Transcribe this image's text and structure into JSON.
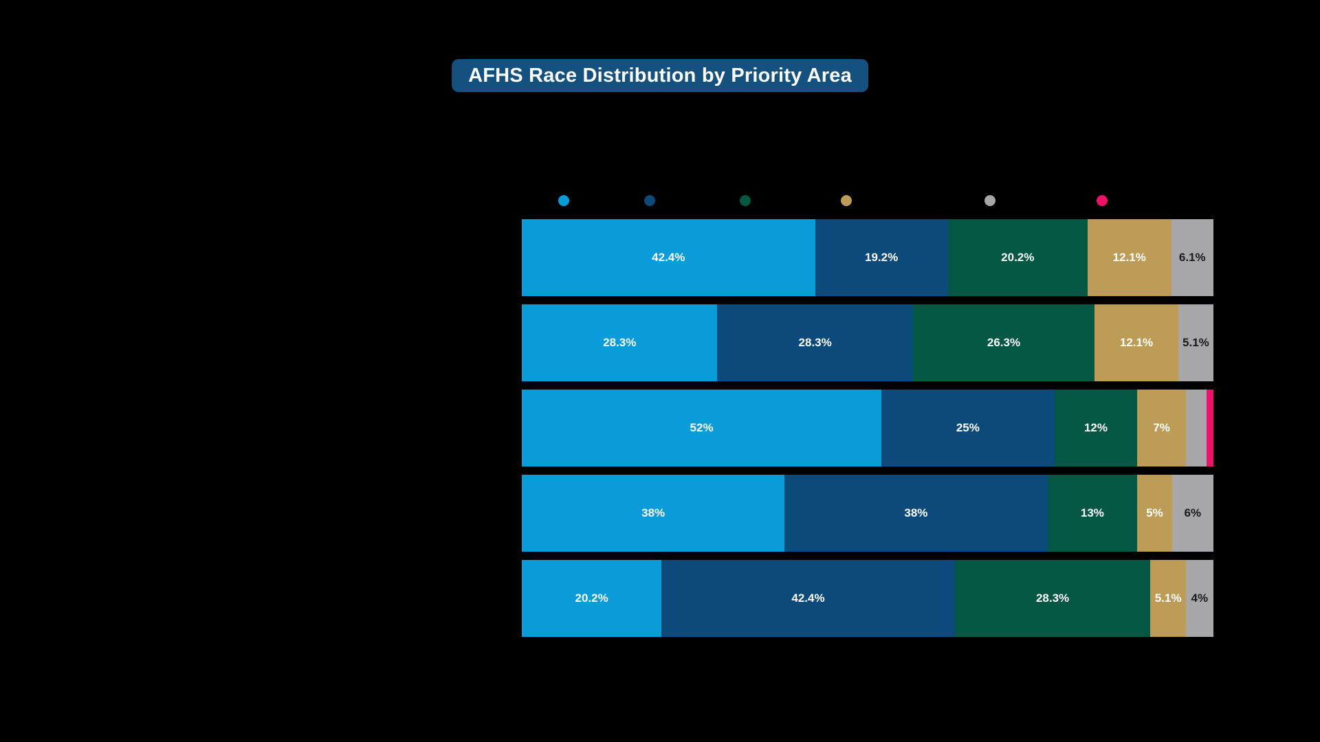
{
  "title": {
    "text": "AFHS Race Distribution by Priority Area"
  },
  "palette": {
    "light_blue": "#0A9CD8",
    "dark_blue": "#0D4A7C",
    "green": "#045742",
    "gold": "#BD9C58",
    "gray": "#A7A7A9",
    "pink": "#ED1168",
    "title_background": "#15517F",
    "page_background": "#000000",
    "label_light": "#FFFFFF",
    "label_dark": "#1A1A1A"
  },
  "legend": {
    "labels_visible": false,
    "dots": [
      {
        "name": "light-blue-dot",
        "color_key": "light_blue"
      },
      {
        "name": "dark-blue-dot",
        "color_key": "dark_blue"
      },
      {
        "name": "green-dot",
        "color_key": "green"
      },
      {
        "name": "gold-dot",
        "color_key": "gold"
      },
      {
        "name": "gray-dot",
        "color_key": "gray"
      },
      {
        "name": "pink-dot",
        "color_key": "pink"
      }
    ]
  },
  "chart_data": {
    "type": "bar",
    "orientation": "horizontal",
    "stacked": true,
    "unit": "percent",
    "title": "AFHS Race Distribution by Priority Area",
    "xlim": [
      0,
      100
    ],
    "grid": false,
    "legend_position": "top",
    "category_labels_visible": false,
    "categories": [
      "",
      "",
      "",
      "",
      ""
    ],
    "series": [
      {
        "name": "light-blue",
        "color_key": "light_blue",
        "values": [
          42.4,
          28.3,
          52,
          38,
          20.2
        ],
        "labels": [
          "42.4%",
          "28.3%",
          "52%",
          "38%",
          "20.2%"
        ]
      },
      {
        "name": "dark-blue",
        "color_key": "dark_blue",
        "values": [
          19.2,
          28.3,
          25,
          38,
          42.4
        ],
        "labels": [
          "19.2%",
          "28.3%",
          "25%",
          "38%",
          "42.4%"
        ]
      },
      {
        "name": "green",
        "color_key": "green",
        "values": [
          20.2,
          26.3,
          12,
          13,
          28.3
        ],
        "labels": [
          "20.2%",
          "26.3%",
          "12%",
          "13%",
          "28.3%"
        ]
      },
      {
        "name": "gold",
        "color_key": "gold",
        "values": [
          12.1,
          12.1,
          7,
          5,
          5.1
        ],
        "labels": [
          "12.1%",
          "12.1%",
          "7%",
          "5%",
          "5.1%"
        ]
      },
      {
        "name": "gray",
        "color_key": "gray",
        "values": [
          6.1,
          5.1,
          3,
          6,
          4
        ],
        "labels": [
          "6.1%",
          "5.1%",
          "",
          "6%",
          "4%"
        ]
      },
      {
        "name": "pink",
        "color_key": "pink",
        "values": [
          0,
          0,
          1,
          0,
          0
        ],
        "labels": [
          "",
          "",
          "",
          "",
          ""
        ]
      }
    ]
  }
}
